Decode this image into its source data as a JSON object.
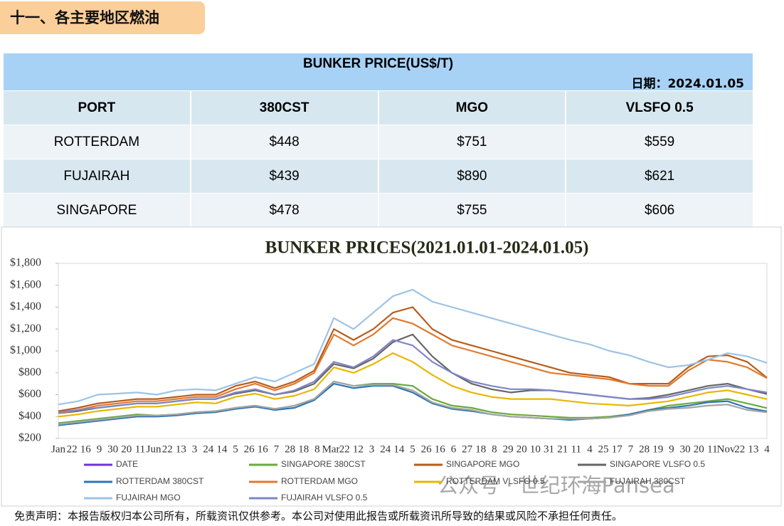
{
  "header": {
    "title": "十一、各主要地区燃油"
  },
  "table": {
    "title": "BUNKER PRICE(US$/T)",
    "date": "日期：2024.01.05",
    "columns": [
      "PORT",
      "380CST",
      "MGO",
      "VLSFO 0.5"
    ],
    "rows": [
      [
        "ROTTERDAM",
        "$448",
        "$751",
        "$559"
      ],
      [
        "FUJAIRAH",
        "$439",
        "$890",
        "$621"
      ],
      [
        "SINGAPORE",
        "$478",
        "$755",
        "$606"
      ]
    ]
  },
  "chart_data": {
    "type": "line",
    "title": "BUNKER PRICES(2021.01.01-2024.01.05)",
    "x_tick_labels": [
      "Jan",
      "22",
      "16",
      "9",
      "30",
      "20",
      "11",
      "Jun",
      "22",
      "13",
      "3",
      "24",
      "14",
      "5",
      "26",
      "16",
      "7",
      "28",
      "18",
      "8",
      "Mar",
      "22",
      "12",
      "3",
      "24",
      "14",
      "5",
      "26",
      "16",
      "6",
      "27",
      "18",
      "8",
      "29",
      "20",
      "10",
      "31",
      "21",
      "11",
      "4",
      "25",
      "17",
      "7",
      "28",
      "19",
      "9",
      "30",
      "20",
      "11",
      "Nov",
      "22",
      "13",
      "4"
    ],
    "ylim": [
      200,
      1800
    ],
    "yticks": [
      {
        "value": 200,
        "label": "$200"
      },
      {
        "value": 400,
        "label": "$400"
      },
      {
        "value": 600,
        "label": "$600"
      },
      {
        "value": 800,
        "label": "$800"
      },
      {
        "value": 1000,
        "label": "$1,000"
      },
      {
        "value": 1200,
        "label": "$1,200"
      },
      {
        "value": 1400,
        "label": "$1,400"
      },
      {
        "value": 1600,
        "label": "$1,600"
      },
      {
        "value": 1800,
        "label": "$1,800"
      }
    ],
    "series": [
      {
        "name": "DATE",
        "color": "#7030e0"
      },
      {
        "name": "SINGAPORE 380CST",
        "color": "#6aaa3a",
        "values": [
          340,
          360,
          380,
          400,
          420,
          410,
          420,
          440,
          450,
          480,
          500,
          470,
          500,
          560,
          720,
          680,
          700,
          700,
          680,
          560,
          500,
          480,
          440,
          420,
          410,
          400,
          390,
          390,
          400,
          420,
          460,
          500,
          520,
          540,
          560,
          520,
          478
        ]
      },
      {
        "name": "SINGAPORE MGO",
        "color": "#b85c1a",
        "values": [
          450,
          480,
          520,
          540,
          560,
          560,
          580,
          600,
          600,
          680,
          720,
          660,
          720,
          820,
          1200,
          1100,
          1200,
          1350,
          1400,
          1200,
          1100,
          1050,
          1000,
          950,
          900,
          850,
          800,
          780,
          760,
          700,
          700,
          700,
          850,
          950,
          960,
          900,
          755
        ]
      },
      {
        "name": "SINGAPORE VLSFO 0.5",
        "color": "#666666",
        "values": [
          430,
          450,
          480,
          500,
          520,
          520,
          540,
          560,
          560,
          610,
          640,
          600,
          630,
          700,
          880,
          840,
          930,
          1080,
          1150,
          950,
          800,
          700,
          650,
          620,
          640,
          640,
          620,
          600,
          580,
          560,
          570,
          600,
          640,
          680,
          700,
          650,
          606
        ]
      },
      {
        "name": "ROTTERDAM 380CST",
        "color": "#2e75b6",
        "values": [
          320,
          340,
          360,
          380,
          400,
          400,
          410,
          430,
          440,
          470,
          490,
          460,
          480,
          550,
          700,
          660,
          680,
          680,
          620,
          520,
          470,
          450,
          420,
          400,
          390,
          380,
          370,
          380,
          390,
          420,
          460,
          480,
          500,
          530,
          540,
          480,
          448
        ]
      },
      {
        "name": "ROTTERDAM MGO",
        "color": "#e07a30",
        "values": [
          430,
          460,
          500,
          520,
          540,
          540,
          560,
          580,
          580,
          650,
          700,
          640,
          700,
          800,
          1150,
          1050,
          1150,
          1300,
          1250,
          1150,
          1050,
          1000,
          950,
          900,
          850,
          800,
          780,
          760,
          740,
          700,
          680,
          680,
          820,
          920,
          900,
          850,
          751
        ]
      },
      {
        "name": "ROTTERDAM VLSFO 0.5",
        "color": "#e6b800",
        "values": [
          400,
          420,
          450,
          470,
          490,
          490,
          510,
          530,
          520,
          580,
          610,
          560,
          590,
          650,
          850,
          800,
          880,
          980,
          900,
          780,
          680,
          620,
          580,
          560,
          560,
          560,
          540,
          520,
          510,
          500,
          520,
          540,
          580,
          620,
          640,
          600,
          559
        ]
      },
      {
        "name": "FUJAIRAH 380CST",
        "color": "#a5a5a5",
        "values": [
          330,
          350,
          370,
          390,
          410,
          410,
          420,
          440,
          450,
          480,
          500,
          470,
          500,
          560,
          720,
          680,
          690,
          690,
          640,
          530,
          480,
          460,
          420,
          400,
          390,
          380,
          380,
          380,
          390,
          410,
          450,
          470,
          480,
          500,
          510,
          460,
          439
        ]
      },
      {
        "name": "FUJAIRAH MGO",
        "color": "#9dc3e6",
        "values": [
          510,
          540,
          600,
          610,
          620,
          600,
          640,
          650,
          640,
          700,
          760,
          720,
          800,
          880,
          1300,
          1200,
          1350,
          1500,
          1560,
          1450,
          1400,
          1350,
          1300,
          1250,
          1200,
          1150,
          1100,
          1060,
          1000,
          960,
          900,
          850,
          870,
          920,
          980,
          950,
          890
        ]
      },
      {
        "name": "FUJAIRAH VLSFO 0.5",
        "color": "#7f86c9",
        "values": [
          440,
          460,
          480,
          500,
          520,
          520,
          540,
          560,
          560,
          620,
          650,
          600,
          640,
          720,
          900,
          850,
          950,
          1100,
          1050,
          900,
          800,
          720,
          680,
          650,
          650,
          640,
          620,
          600,
          580,
          560,
          560,
          580,
          620,
          660,
          680,
          650,
          621
        ]
      }
    ]
  },
  "watermark": "公众号 · 世纪环海Pansea",
  "footer": "免责声明：本报告版权归本公司所有，所载资讯仅供参考。本公司对使用此报告或所载资讯所导致的结果或风险不承担任何责任。"
}
